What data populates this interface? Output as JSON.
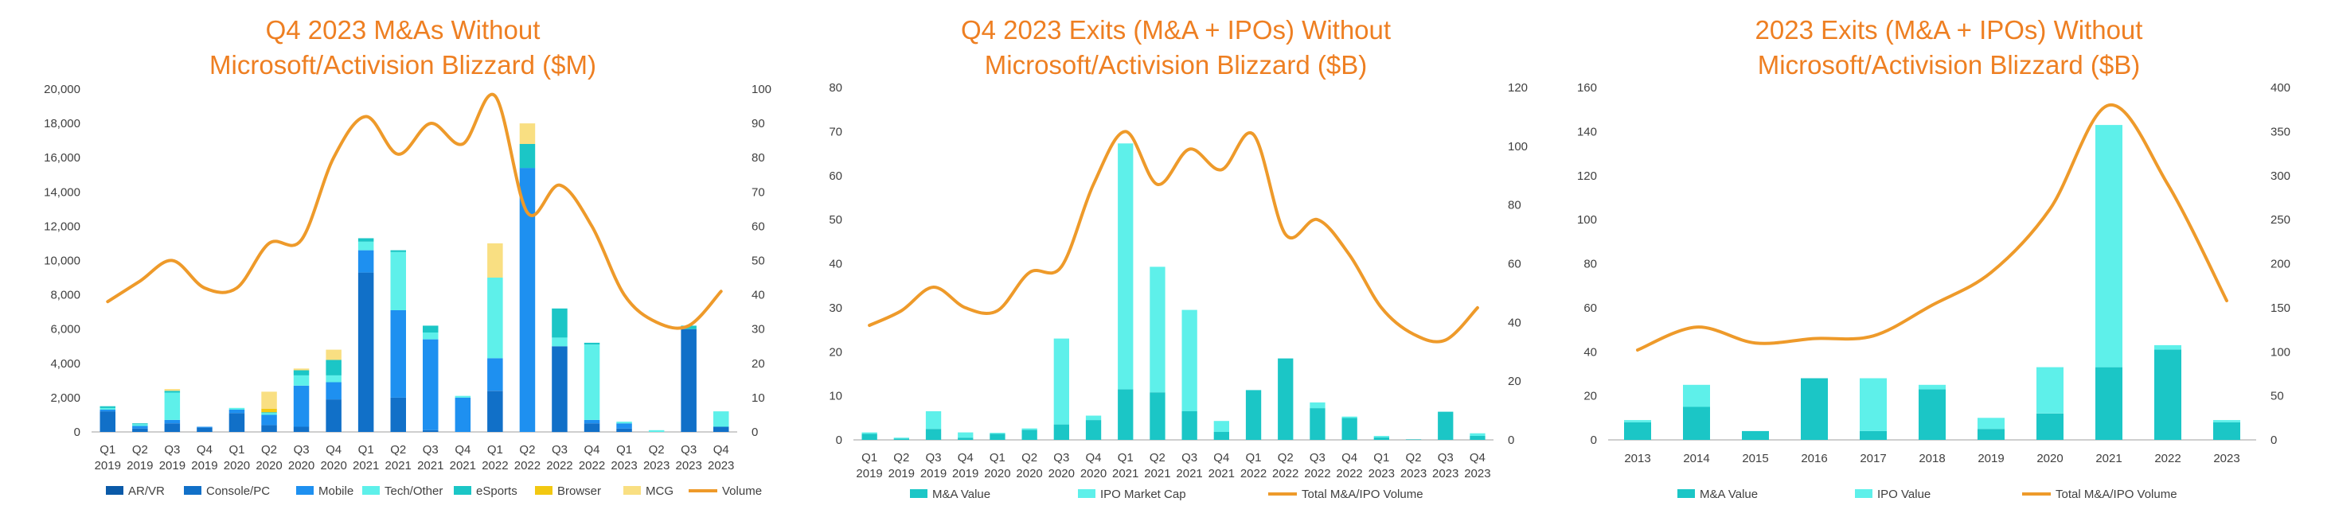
{
  "colors": {
    "title": "#ee7f22",
    "line": "#ee9a2a",
    "axis": "#bfbfbf",
    "tick_text": "#404040"
  },
  "chart_data": [
    {
      "type": "bar",
      "stacked": true,
      "title_lines": [
        "Q4 2023 M&As Without",
        "Microsoft/Activision Blizzard ($M)"
      ],
      "categories": [
        [
          "Q1",
          "2019"
        ],
        [
          "Q2",
          "2019"
        ],
        [
          "Q3",
          "2019"
        ],
        [
          "Q4",
          "2019"
        ],
        [
          "Q1",
          "2020"
        ],
        [
          "Q2",
          "2020"
        ],
        [
          "Q3",
          "2020"
        ],
        [
          "Q4",
          "2020"
        ],
        [
          "Q1",
          "2021"
        ],
        [
          "Q2",
          "2021"
        ],
        [
          "Q3",
          "2021"
        ],
        [
          "Q4",
          "2021"
        ],
        [
          "Q1",
          "2022"
        ],
        [
          "Q2",
          "2022"
        ],
        [
          "Q3",
          "2022"
        ],
        [
          "Q4",
          "2022"
        ],
        [
          "Q1",
          "2023"
        ],
        [
          "Q2",
          "2023"
        ],
        [
          "Q3",
          "2023"
        ],
        [
          "Q4",
          "2023"
        ]
      ],
      "ylim": [
        0,
        20000
      ],
      "yticks": [
        "0",
        "2,000",
        "4,000",
        "6,000",
        "8,000",
        "10,000",
        "12,000",
        "14,000",
        "16,000",
        "18,000",
        "20,000"
      ],
      "y2lim": [
        0,
        100
      ],
      "y2ticks": [
        "0",
        "10",
        "20",
        "30",
        "40",
        "50",
        "60",
        "70",
        "80",
        "90",
        "100"
      ],
      "series": [
        {
          "name": "AR/VR",
          "color": "#0a5aa8",
          "values": [
            0,
            0,
            0,
            0,
            0,
            0,
            0,
            0,
            0,
            0,
            0,
            0,
            0,
            0,
            0,
            0,
            0,
            0,
            0,
            0
          ]
        },
        {
          "name": "Console/PC",
          "color": "#1170c8",
          "values": [
            1200,
            200,
            500,
            250,
            1100,
            400,
            300,
            1900,
            9300,
            2000,
            100,
            0,
            2400,
            0,
            5000,
            500,
            200,
            0,
            6000,
            300
          ]
        },
        {
          "name": "Mobile",
          "color": "#1e90f0",
          "values": [
            100,
            150,
            200,
            50,
            200,
            600,
            2400,
            1000,
            1300,
            5100,
            5300,
            2000,
            1900,
            15400,
            0,
            200,
            300,
            0,
            0,
            0
          ]
        },
        {
          "name": "Tech/Other",
          "color": "#5ef0ea",
          "values": [
            100,
            100,
            1600,
            0,
            100,
            100,
            600,
            400,
            500,
            3400,
            400,
            100,
            4700,
            0,
            500,
            4400,
            100,
            100,
            0,
            900
          ]
        },
        {
          "name": "eSports",
          "color": "#1bc6c6",
          "values": [
            100,
            50,
            100,
            0,
            0,
            50,
            300,
            900,
            200,
            100,
            400,
            0,
            0,
            1400,
            1700,
            100,
            0,
            0,
            200,
            0
          ]
        },
        {
          "name": "Browser",
          "color": "#f2c811",
          "values": [
            0,
            0,
            0,
            0,
            0,
            200,
            0,
            0,
            0,
            0,
            0,
            0,
            0,
            0,
            0,
            0,
            0,
            0,
            0,
            0
          ]
        },
        {
          "name": "MCG",
          "color": "#f9df82",
          "values": [
            0,
            0,
            100,
            0,
            0,
            1000,
            100,
            600,
            0,
            0,
            0,
            0,
            2000,
            1200,
            0,
            0,
            0,
            0,
            0,
            0
          ]
        }
      ],
      "line": {
        "name": "Volume",
        "color": "#ee9a2a",
        "values": [
          38,
          44,
          50,
          42,
          42,
          55,
          56,
          80,
          92,
          81,
          90,
          84,
          98,
          64,
          72,
          60,
          40,
          32,
          31,
          41
        ]
      }
    },
    {
      "type": "bar",
      "stacked": true,
      "title_lines": [
        "Q4 2023 Exits (M&A + IPOs) Without",
        "Microsoft/Activision Blizzard ($B)"
      ],
      "categories": [
        [
          "Q1",
          "2019"
        ],
        [
          "Q2",
          "2019"
        ],
        [
          "Q3",
          "2019"
        ],
        [
          "Q4",
          "2019"
        ],
        [
          "Q1",
          "2020"
        ],
        [
          "Q2",
          "2020"
        ],
        [
          "Q3",
          "2020"
        ],
        [
          "Q4",
          "2020"
        ],
        [
          "Q1",
          "2021"
        ],
        [
          "Q2",
          "2021"
        ],
        [
          "Q3",
          "2021"
        ],
        [
          "Q4",
          "2021"
        ],
        [
          "Q1",
          "2022"
        ],
        [
          "Q2",
          "2022"
        ],
        [
          "Q3",
          "2022"
        ],
        [
          "Q4",
          "2022"
        ],
        [
          "Q1",
          "2023"
        ],
        [
          "Q2",
          "2023"
        ],
        [
          "Q3",
          "2023"
        ],
        [
          "Q4",
          "2023"
        ]
      ],
      "ylim": [
        0,
        80
      ],
      "yticks": [
        "0",
        "10",
        "20",
        "30",
        "40",
        "50",
        "60",
        "70",
        "80"
      ],
      "y2lim": [
        0,
        120
      ],
      "y2ticks": [
        "0",
        "20",
        "40",
        "60",
        "80",
        "100",
        "120"
      ],
      "series": [
        {
          "name": "M&A Value",
          "color": "#1bc6c6",
          "values": [
            1.4,
            0.3,
            2.5,
            0.5,
            1.4,
            2.3,
            3.5,
            4.5,
            11.5,
            10.8,
            6.5,
            1.8,
            11.3,
            18.5,
            7.2,
            5.0,
            0.6,
            0.1,
            6.4,
            0.9
          ]
        },
        {
          "name": "IPO Market Cap",
          "color": "#5ef0ea",
          "values": [
            0.3,
            0.2,
            4.0,
            1.2,
            0.2,
            0.3,
            19.5,
            1.0,
            55.8,
            28.5,
            23.0,
            2.5,
            0,
            0,
            1.3,
            0.3,
            0.3,
            0,
            0,
            0.6
          ]
        }
      ],
      "line": {
        "name": "Total M&A/IPO Volume",
        "color": "#ee9a2a",
        "values": [
          39,
          44,
          52,
          45,
          44,
          57,
          59,
          87,
          105,
          87,
          99,
          92,
          104,
          70,
          75,
          63,
          45,
          36,
          34,
          45
        ]
      }
    },
    {
      "type": "bar",
      "stacked": true,
      "title_lines": [
        "2023 Exits (M&A + IPOs) Without",
        "Microsoft/Activision Blizzard ($B)"
      ],
      "categories": [
        [
          "2013"
        ],
        [
          "2014"
        ],
        [
          "2015"
        ],
        [
          "2016"
        ],
        [
          "2017"
        ],
        [
          "2018"
        ],
        [
          "2019"
        ],
        [
          "2020"
        ],
        [
          "2021"
        ],
        [
          "2022"
        ],
        [
          "2023"
        ]
      ],
      "ylim": [
        0,
        160
      ],
      "yticks": [
        "0",
        "20",
        "40",
        "60",
        "80",
        "100",
        "120",
        "140",
        "160"
      ],
      "y2lim": [
        0,
        400
      ],
      "y2ticks": [
        "0",
        "50",
        "100",
        "150",
        "200",
        "250",
        "300",
        "350",
        "400"
      ],
      "series": [
        {
          "name": "M&A Value",
          "color": "#1bc6c6",
          "values": [
            8,
            15,
            4,
            28,
            4,
            23,
            5,
            12,
            33,
            41,
            8
          ]
        },
        {
          "name": "IPO Value",
          "color": "#5ef0ea",
          "values": [
            1,
            10,
            0,
            0,
            24,
            2,
            5,
            21,
            110,
            2,
            1
          ]
        }
      ],
      "line": {
        "name": "Total M&A/IPO Volume",
        "color": "#ee9a2a",
        "values": [
          102,
          128,
          110,
          115,
          118,
          153,
          190,
          262,
          380,
          290,
          158
        ]
      }
    }
  ]
}
